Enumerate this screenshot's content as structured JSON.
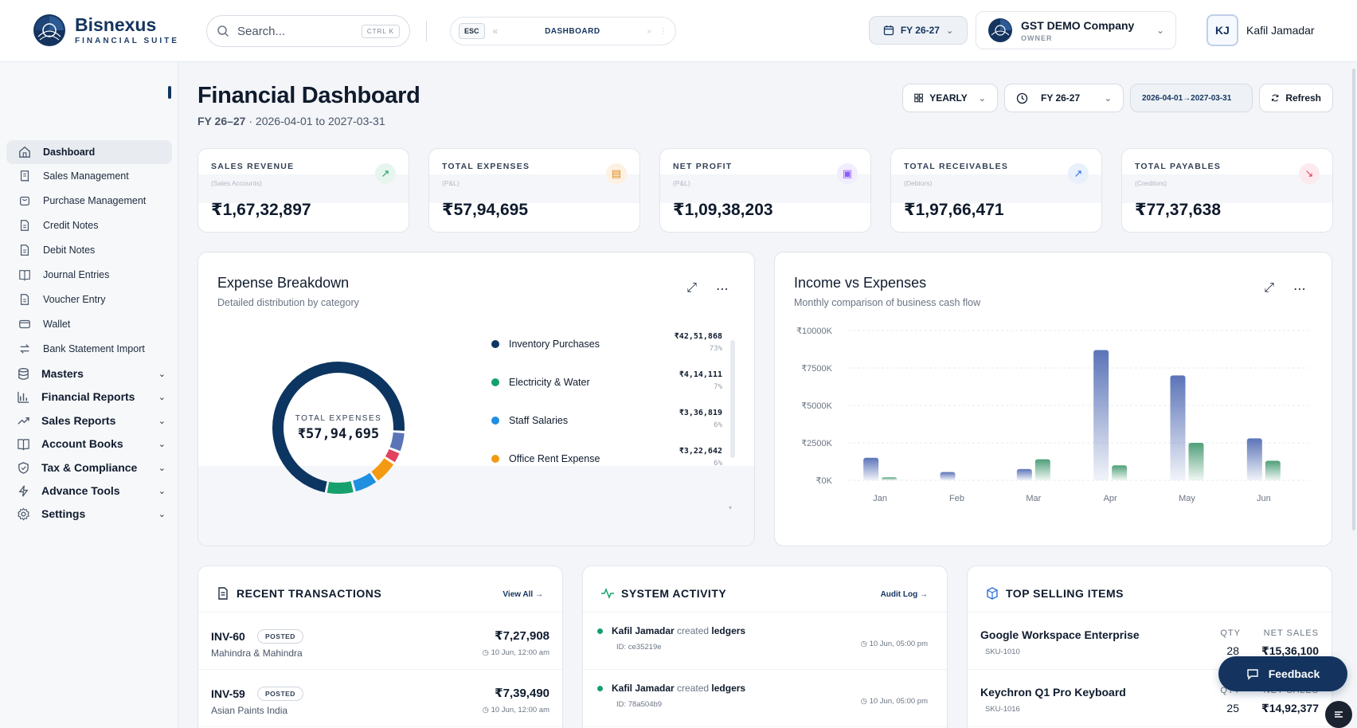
{
  "brand": {
    "name": "Bisnexus",
    "tagline": "FINANCIAL SUITE"
  },
  "header": {
    "search_placeholder": "Search...",
    "search_shortcut": "CTRL K",
    "esc_label": "ESC",
    "breadcrumb": "DASHBOARD",
    "fy_label": "FY 26-27",
    "company_name": "GST DEMO Company",
    "company_role": "OWNER",
    "user_initials": "KJ",
    "user_name": "Kafil Jamadar"
  },
  "sidebar": {
    "items": [
      {
        "label": "Dashboard",
        "icon": "home-icon",
        "active": true
      },
      {
        "label": "Sales Management",
        "icon": "receipt-icon"
      },
      {
        "label": "Purchase Management",
        "icon": "cart-icon"
      },
      {
        "label": "Credit Notes",
        "icon": "document-icon"
      },
      {
        "label": "Debit Notes",
        "icon": "document-icon"
      },
      {
        "label": "Journal Entries",
        "icon": "book-icon"
      },
      {
        "label": "Voucher Entry",
        "icon": "document-icon"
      },
      {
        "label": "Wallet",
        "icon": "wallet-icon"
      },
      {
        "label": "Bank Statement Import",
        "icon": "transfer-icon"
      }
    ],
    "groups": [
      {
        "label": "Masters",
        "icon": "database-icon"
      },
      {
        "label": "Financial Reports",
        "icon": "bar-chart-icon"
      },
      {
        "label": "Sales Reports",
        "icon": "trend-icon"
      },
      {
        "label": "Account Books",
        "icon": "book-icon"
      },
      {
        "label": "Tax & Compliance",
        "icon": "shield-icon"
      },
      {
        "label": "Advance Tools",
        "icon": "bolt-icon"
      },
      {
        "label": "Settings",
        "icon": "gear-icon"
      }
    ]
  },
  "page": {
    "title": "Financial Dashboard",
    "fy": "FY 26–27",
    "sub_range": "2026-04-01 to 2027-03-31",
    "period_label": "YEARLY",
    "fy_select": "FY 26-27",
    "range_chip": "2026-04-01→2027-03-31",
    "refresh_label": "Refresh"
  },
  "kpis": [
    {
      "label": "SALES REVENUE",
      "source": "(Sales Accounts)",
      "value": "₹1,67,32,897",
      "icon": "trend-up-icon",
      "color": "#1e9c6a",
      "bg": "#e7f5ef"
    },
    {
      "label": "TOTAL EXPENSES",
      "source": "(P&L)",
      "value": "₹57,94,695",
      "icon": "receipt-icon",
      "color": "#e08a1e",
      "bg": "#fdf1e2"
    },
    {
      "label": "NET PROFIT",
      "source": "(P&L)",
      "value": "₹1,09,38,203",
      "icon": "wallet-icon",
      "color": "#8b5cf6",
      "bg": "#f1ecfe"
    },
    {
      "label": "TOTAL RECEIVABLES",
      "source": "(Debtors)",
      "value": "₹1,97,66,471",
      "icon": "arrow-up-right-icon",
      "color": "#2f6fd6",
      "bg": "#e8f0fc"
    },
    {
      "label": "TOTAL PAYABLES",
      "source": "(Creditors)",
      "value": "₹77,37,638",
      "icon": "arrow-down-right-icon",
      "color": "#e0445f",
      "bg": "#fdeaee"
    }
  ],
  "expense": {
    "title": "Expense Breakdown",
    "subtitle": "Detailed distribution by category",
    "center_caption": "TOTAL EXPENSES",
    "center_total": "₹57,94,695",
    "legend": [
      {
        "name": "Inventory Purchases",
        "amount": "₹42,51,868",
        "pct": "73%",
        "color": "#0d3561"
      },
      {
        "name": "Electricity & Water",
        "amount": "₹4,14,111",
        "pct": "7%",
        "color": "#16a06e"
      },
      {
        "name": "Staff Salaries",
        "amount": "₹3,36,819",
        "pct": "6%",
        "color": "#1f8fe0"
      },
      {
        "name": "Office Rent Expense",
        "amount": "₹3,22,642",
        "pct": "6%",
        "color": "#f39a12"
      }
    ]
  },
  "chart_data": {
    "type": "bar",
    "title": "Income vs Expenses",
    "subtitle": "Monthly comparison of business cash flow",
    "categories": [
      "Jan",
      "Feb",
      "Mar",
      "Apr",
      "May",
      "Jun"
    ],
    "series": [
      {
        "values": [
          1500,
          550,
          750,
          8700,
          7000,
          2800
        ],
        "color": "#5b74b8"
      },
      {
        "values": [
          200,
          0,
          1400,
          1000,
          2500,
          1300
        ],
        "color": "#4f9f79"
      }
    ],
    "yticks": [
      "₹0K",
      "₹2500K",
      "₹5000K",
      "₹7500K",
      "₹10000K"
    ],
    "ylim": [
      0,
      10000
    ],
    "grid": true
  },
  "transactions": {
    "title": "RECENT TRANSACTIONS",
    "link": "View All",
    "rows": [
      {
        "id": "INV-60",
        "status": "POSTED",
        "party": "Mahindra & Mahindra",
        "amount": "₹7,27,908",
        "time": "10 Jun, 12:00 am"
      },
      {
        "id": "INV-59",
        "status": "POSTED",
        "party": "Asian Paints India",
        "amount": "₹7,39,490",
        "time": "10 Jun, 12:00 am"
      }
    ]
  },
  "activity": {
    "title": "SYSTEM ACTIVITY",
    "link": "Audit Log",
    "rows": [
      {
        "user": "Kafil Jamadar",
        "verb": "created",
        "object": "ledgers",
        "ref": "ID: ce35219e",
        "time": "10 Jun, 05:00 pm"
      },
      {
        "user": "Kafil Jamadar",
        "verb": "created",
        "object": "ledgers",
        "ref": "ID: 78a504b9",
        "time": "10 Jun, 05:00 pm"
      }
    ]
  },
  "top_items": {
    "title": "TOP SELLING ITEMS",
    "qty_header": "QTY",
    "sales_header": "NET SALES",
    "rows": [
      {
        "name": "Google Workspace Enterprise",
        "sku": "SKU-1010",
        "qty": "28",
        "sales": "₹15,36,100"
      },
      {
        "name": "Keychron Q1 Pro Keyboard",
        "sku": "SKU-1016",
        "qty": "25",
        "sales": "₹14,92,377"
      }
    ]
  },
  "feedback_label": "Feedback"
}
